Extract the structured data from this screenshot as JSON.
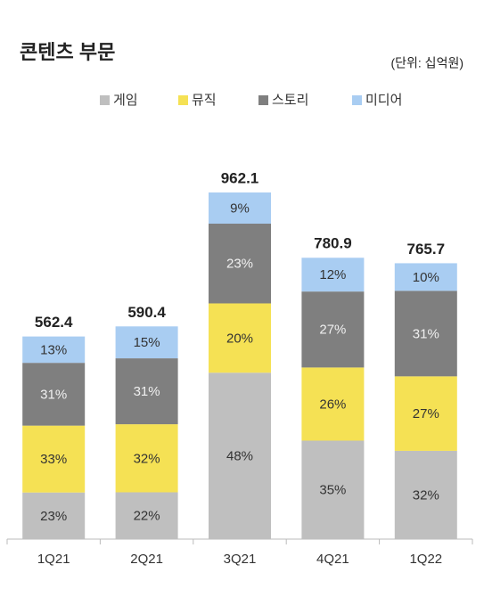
{
  "chart_data": {
    "type": "stacked_bar_percent",
    "title": "콘텐츠 부문",
    "subtitle": "(단위: 십억원)",
    "categories": [
      "1Q21",
      "2Q21",
      "3Q21",
      "4Q21",
      "1Q22"
    ],
    "totals": [
      562.4,
      590.4,
      962.1,
      780.9,
      765.7
    ],
    "series": [
      {
        "name": "게임",
        "color": "#bfbfbf",
        "values": [
          23,
          22,
          48,
          35,
          32
        ],
        "value_labels": [
          "23%",
          "22%",
          "48%",
          "35%",
          "32%"
        ]
      },
      {
        "name": "뮤직",
        "color": "#f5e154",
        "values": [
          33,
          32,
          20,
          26,
          27
        ],
        "value_labels": [
          "33%",
          "32%",
          "20%",
          "26%",
          "27%"
        ]
      },
      {
        "name": "스토리",
        "color": "#7f7f7f",
        "values": [
          31,
          31,
          23,
          27,
          31
        ],
        "value_labels": [
          "31%",
          "31%",
          "23%",
          "27%",
          "31%"
        ]
      },
      {
        "name": "미디어",
        "color": "#a9cdf2",
        "values": [
          13,
          15,
          9,
          12,
          10
        ],
        "value_labels": [
          "13%",
          "15%",
          "9%",
          "12%",
          "10%"
        ]
      }
    ]
  }
}
